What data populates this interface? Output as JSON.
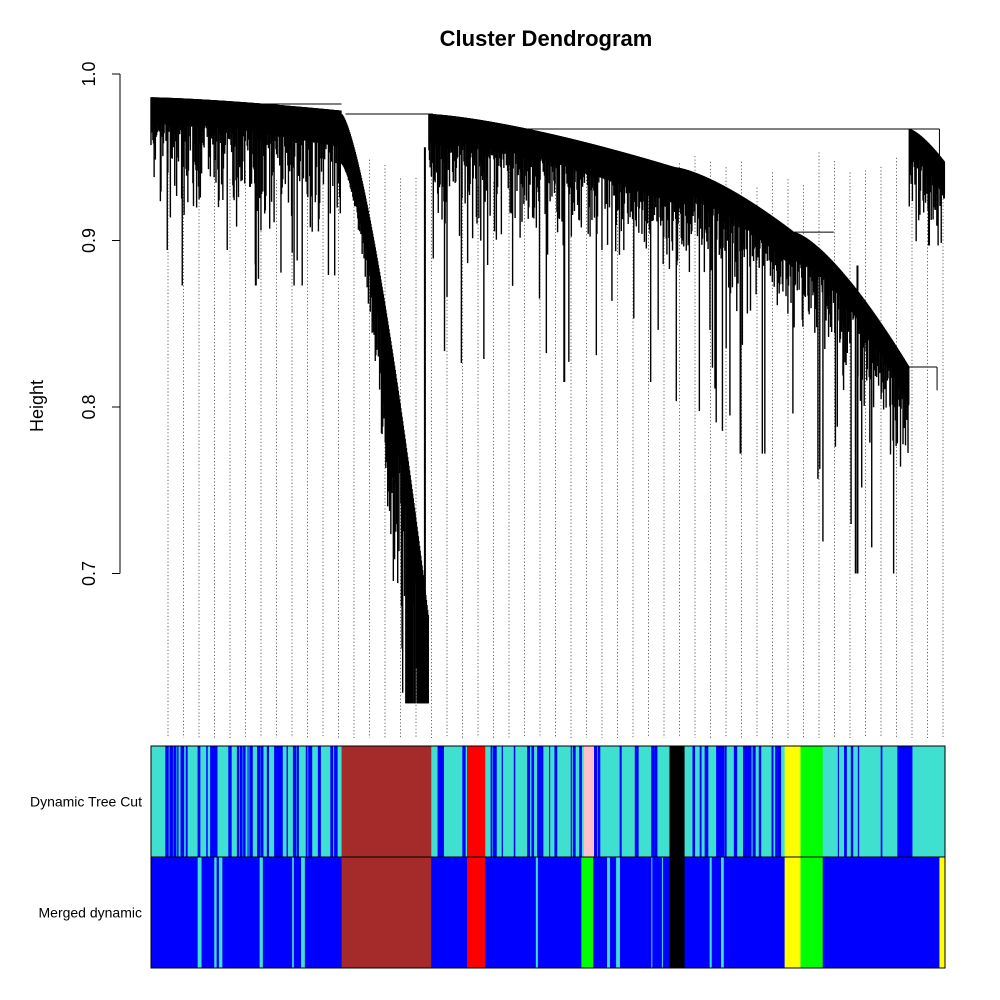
{
  "chart_data": {
    "type": "dendrogram",
    "title": "Cluster Dendrogram",
    "ylabel": "Height",
    "xlabel": "",
    "ylim": [
      0.6,
      1.0
    ],
    "yticks": [
      0.7,
      0.8,
      0.9,
      1.0
    ],
    "ytick_labels": [
      "0.7",
      "0.8",
      "0.9",
      "1.0"
    ],
    "grid": false,
    "leaf_guides": "dotted",
    "tree": {
      "root_height": 0.982,
      "clusters": [
        {
          "x": [
            0.0,
            0.24
          ],
          "top": 0.986,
          "min": 0.873,
          "trend_to": 0.978,
          "color": "#000000"
        },
        {
          "x": [
            0.24,
            0.35
          ],
          "top": 0.976,
          "min": 0.622,
          "trend_to": 0.62,
          "color": "#000000"
        },
        {
          "x": [
            0.35,
            0.66
          ],
          "top": 0.976,
          "min": 0.815,
          "trend_to": 0.944,
          "color": "#000000"
        },
        {
          "x": [
            0.66,
            0.81
          ],
          "top": 0.944,
          "min": 0.772,
          "trend_to": 0.905,
          "color": "#000000"
        },
        {
          "x": [
            0.81,
            0.955
          ],
          "top": 0.905,
          "min": 0.7,
          "trend_to": 0.824,
          "color": "#000000"
        },
        {
          "x": [
            0.955,
            1.0
          ],
          "top": 0.967,
          "min": 0.897,
          "trend_to": 0.9,
          "color": "#000000"
        }
      ]
    },
    "color_rows": [
      {
        "label": "Dynamic Tree Cut",
        "base_color": "#40E0D0",
        "segments": [
          {
            "from": 0.24,
            "to": 0.353,
            "color": "#A52A2A"
          },
          {
            "from": 0.398,
            "to": 0.421,
            "color": "#FF0000"
          },
          {
            "from": 0.545,
            "to": 0.558,
            "color": "#FFC0CB"
          },
          {
            "from": 0.653,
            "to": 0.672,
            "color": "#000000"
          },
          {
            "from": 0.798,
            "to": 0.818,
            "color": "#FFFF00"
          },
          {
            "from": 0.818,
            "to": 0.846,
            "color": "#00FF00"
          },
          {
            "from": 0.94,
            "to": 0.959,
            "color": "#0000FF"
          }
        ],
        "stripes": [
          {
            "range": [
              0.0,
              0.24
            ],
            "color": "#0000FF",
            "count": 42
          },
          {
            "range": [
              0.36,
              0.65
            ],
            "color": "#0000FF",
            "count": 30
          },
          {
            "range": [
              0.68,
              0.79
            ],
            "color": "#0000FF",
            "count": 26
          },
          {
            "range": [
              0.85,
              0.93
            ],
            "color": "#0000FF",
            "count": 6
          }
        ]
      },
      {
        "label": "Merged dynamic",
        "base_color": "#0000FF",
        "segments": [
          {
            "from": 0.24,
            "to": 0.353,
            "color": "#A52A2A"
          },
          {
            "from": 0.398,
            "to": 0.421,
            "color": "#FF0000"
          },
          {
            "from": 0.542,
            "to": 0.557,
            "color": "#00FF00"
          },
          {
            "from": 0.653,
            "to": 0.672,
            "color": "#000000"
          },
          {
            "from": 0.798,
            "to": 0.818,
            "color": "#FFFF00"
          },
          {
            "from": 0.818,
            "to": 0.846,
            "color": "#00FF00"
          },
          {
            "from": 0.993,
            "to": 1.0,
            "color": "#FFFF00"
          }
        ],
        "stripes": [
          {
            "range": [
              0.0,
              0.24
            ],
            "color": "#40E0D0",
            "count": 6
          },
          {
            "range": [
              0.36,
              0.65
            ],
            "color": "#40E0D0",
            "count": 5
          },
          {
            "range": [
              0.68,
              0.79
            ],
            "color": "#40E0D0",
            "count": 2
          }
        ]
      }
    ]
  }
}
